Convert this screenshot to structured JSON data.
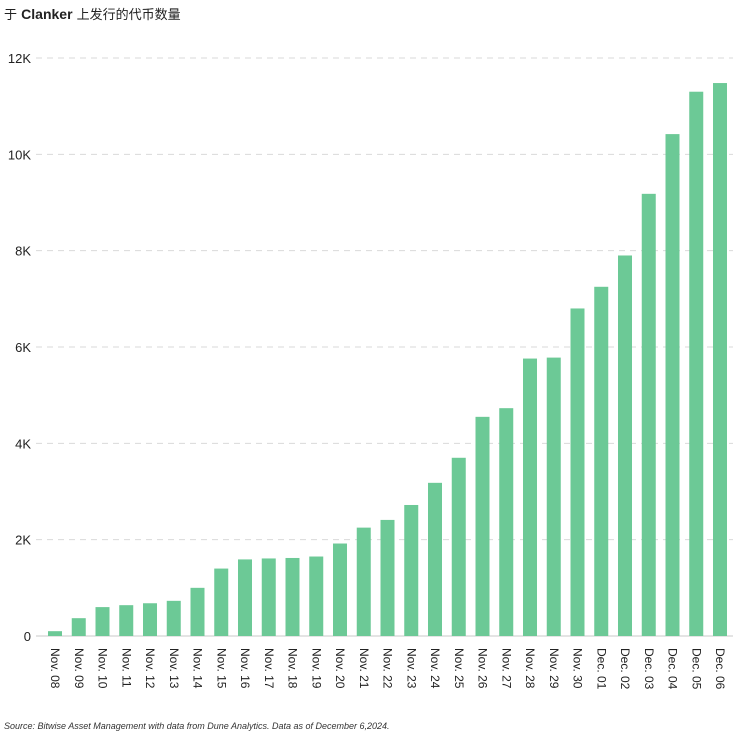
{
  "title": {
    "prefix": "于",
    "brand": "Clanker",
    "suffix": "上发行的代币数量"
  },
  "source": "Source: Bitwise Asset Management with data from Dune Analytics. Data as of December 6,2024.",
  "colors": {
    "bar": "#6cc996",
    "grid": "#d9d9d9"
  },
  "chart_data": {
    "type": "bar",
    "title": "于 Clanker 上发行的代币数量",
    "xlabel": "",
    "ylabel": "",
    "ylim": [
      0,
      12000
    ],
    "yticks": [
      0,
      2000,
      4000,
      6000,
      8000,
      10000,
      12000
    ],
    "ytick_labels": [
      "0",
      "2K",
      "4K",
      "6K",
      "8K",
      "10K",
      "12K"
    ],
    "grid": true,
    "categories": [
      "Nov. 08",
      "Nov. 09",
      "Nov. 10",
      "Nov. 11",
      "Nov. 12",
      "Nov. 13",
      "Nov. 14",
      "Nov. 15",
      "Nov. 16",
      "Nov. 17",
      "Nov. 18",
      "Nov. 19",
      "Nov. 20",
      "Nov. 21",
      "Nov. 22",
      "Nov. 23",
      "Nov. 24",
      "Nov. 25",
      "Nov. 26",
      "Nov. 27",
      "Nov. 28",
      "Nov. 29",
      "Nov. 30",
      "Dec. 01",
      "Dec. 02",
      "Dec. 03",
      "Dec. 04",
      "Dec. 05",
      "Dec. 06"
    ],
    "values": [
      100,
      370,
      600,
      640,
      680,
      730,
      1000,
      1400,
      1590,
      1610,
      1620,
      1650,
      1920,
      2250,
      2410,
      2720,
      3180,
      3700,
      4550,
      4730,
      5760,
      5780,
      6800,
      7250,
      7900,
      9180,
      10420,
      11300,
      11480
    ]
  }
}
